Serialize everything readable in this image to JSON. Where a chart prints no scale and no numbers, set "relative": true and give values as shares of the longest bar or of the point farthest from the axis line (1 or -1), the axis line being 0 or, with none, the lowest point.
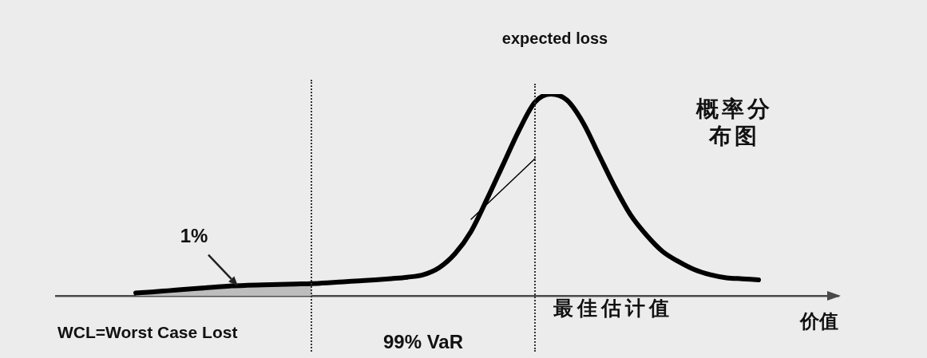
{
  "chart_data": {
    "type": "line",
    "relative": true,
    "tick_labels": false,
    "xlabel": "价值",
    "categories": [
      null,
      null,
      null,
      null,
      null,
      null,
      null,
      null,
      null,
      null,
      null,
      null,
      null,
      null,
      null,
      null,
      null,
      null,
      null,
      null,
      null,
      null,
      null,
      null,
      null,
      null,
      null,
      null,
      null,
      null,
      null,
      null,
      null,
      null,
      null,
      null,
      null,
      null,
      null,
      null,
      null,
      null,
      null,
      null,
      null,
      null,
      null,
      null,
      null,
      null
    ],
    "series": [
      {
        "name": "概率分布图",
        "color": "#000000",
        "values": [
          null,
          null,
          null,
          null,
          null,
          0.015,
          0.02,
          0.026,
          0.032,
          0.038,
          0.044,
          0.05,
          0.053,
          0.055,
          0.057,
          0.059,
          0.061,
          0.065,
          0.07,
          0.075,
          0.08,
          0.086,
          0.093,
          0.105,
          0.14,
          0.21,
          0.32,
          0.48,
          0.65,
          0.82,
          0.96,
          1,
          0.97,
          0.86,
          0.7,
          0.54,
          0.4,
          0.3,
          0.22,
          0.17,
          0.13,
          0.105,
          0.09,
          0.085,
          0.08,
          null,
          null,
          null,
          null,
          null
        ]
      },
      {
        "type": "area",
        "color": "#bdbdbd",
        "values": [
          null,
          null,
          null,
          null,
          null,
          0.015,
          0.02,
          0.026,
          0.032,
          0.038,
          0.044,
          0.05,
          0.053,
          0.055,
          0.057,
          0.059,
          0.061,
          null,
          null,
          null,
          null,
          null,
          null,
          null,
          null,
          null,
          null,
          null,
          null,
          null,
          null,
          null,
          null,
          null,
          null,
          null,
          null,
          null,
          null,
          null,
          null,
          null,
          null,
          null,
          null,
          null,
          null,
          null,
          null,
          null
        ]
      },
      {
        "color": "#000000",
        "values": [
          null,
          null,
          null,
          null,
          null,
          null,
          null,
          null,
          null,
          null,
          null,
          null,
          null,
          null,
          null,
          null,
          null,
          null,
          null,
          null,
          null,
          null,
          null,
          null,
          null,
          null,
          0.38,
          0.455,
          0.53,
          0.605,
          0.68,
          null,
          null,
          null,
          null,
          null,
          null,
          null,
          null,
          null,
          null,
          null,
          null,
          null,
          null,
          null,
          null,
          null,
          null,
          null
        ]
      }
    ],
    "annotations": [
      "expected loss",
      "1%",
      "WCL=Worst Case Lost",
      "99% VaR",
      "最佳估计值"
    ]
  }
}
